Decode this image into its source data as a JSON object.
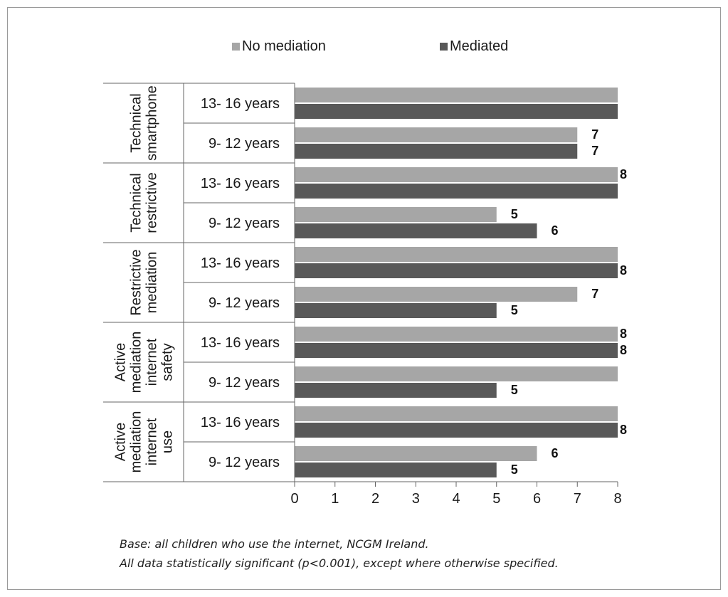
{
  "chart_data": {
    "type": "bar",
    "orientation": "horizontal",
    "legend": [
      {
        "name": "No mediation",
        "color": "#a6a6a6"
      },
      {
        "name": "Mediated",
        "color": "#595959"
      }
    ],
    "legend_placement": "top",
    "groups": [
      {
        "label_lines": [
          "Technical",
          "smartphone"
        ],
        "rows": [
          {
            "label": "13- 16 years",
            "values": [
              8,
              8
            ],
            "labels": [
              "",
              ""
            ]
          },
          {
            "label": "9- 12 years",
            "values": [
              7,
              7
            ],
            "labels": [
              "7",
              "7"
            ]
          }
        ]
      },
      {
        "label_lines": [
          "Technical",
          "restrictive"
        ],
        "rows": [
          {
            "label": "13- 16 years",
            "values": [
              8,
              8
            ],
            "labels": [
              "8",
              ""
            ]
          },
          {
            "label": "9- 12 years",
            "values": [
              5,
              6
            ],
            "labels": [
              "5",
              "6"
            ]
          }
        ]
      },
      {
        "label_lines": [
          "Restrictive",
          "mediation"
        ],
        "rows": [
          {
            "label": "13- 16 years",
            "values": [
              8,
              8
            ],
            "labels": [
              "",
              "8"
            ]
          },
          {
            "label": "9- 12 years",
            "values": [
              7,
              5
            ],
            "labels": [
              "7",
              "5"
            ]
          }
        ]
      },
      {
        "label_lines": [
          "Active",
          "mediation",
          "internet",
          "safety"
        ],
        "rows": [
          {
            "label": "13- 16 years",
            "values": [
              8,
              8
            ],
            "labels": [
              "8",
              "8"
            ]
          },
          {
            "label": "9- 12 years",
            "values": [
              8,
              5
            ],
            "labels": [
              "",
              "5"
            ]
          }
        ]
      },
      {
        "label_lines": [
          "Active",
          "mediation",
          "internet",
          "use"
        ],
        "rows": [
          {
            "label": "13- 16 years",
            "values": [
              8,
              8
            ],
            "labels": [
              "",
              "8"
            ]
          },
          {
            "label": "9- 12 years",
            "values": [
              6,
              5
            ],
            "labels": [
              "6",
              "5"
            ]
          }
        ]
      }
    ],
    "xlim": [
      0,
      8
    ],
    "xticks": [
      0,
      1,
      2,
      3,
      4,
      5,
      6,
      7,
      8
    ],
    "grid": false
  },
  "footnotes": {
    "line1": "Base: all children who use the internet, NCGM Ireland.",
    "line2": "All data statistically significant (p<0.001), except where otherwise specified."
  }
}
